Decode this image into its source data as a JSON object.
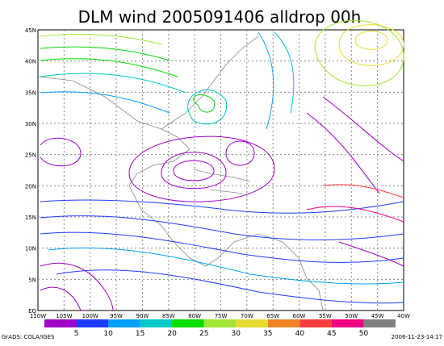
{
  "title": "DLM wind 2005091406 alldrop 00h",
  "lat_labels": [
    "45N",
    "40N",
    "35N",
    "30N",
    "25N",
    "20N",
    "15N",
    "10N",
    "5N",
    "EQ"
  ],
  "lon_labels": [
    "110W",
    "105W",
    "100W",
    "95W",
    "90W",
    "85W",
    "80W",
    "75W",
    "70W",
    "65W",
    "60W",
    "55W",
    "50W",
    "45W",
    "40W"
  ],
  "colorbar": {
    "labels": [
      5,
      10,
      15,
      20,
      25,
      30,
      35,
      40,
      45,
      50
    ],
    "colors": [
      "#a000c8",
      "#1e3cff",
      "#00a0ff",
      "#00c8c8",
      "#00dc00",
      "#a0e632",
      "#e6dc32",
      "#f08228",
      "#fa3c3c",
      "#f00082",
      "#808080"
    ]
  },
  "footer_left": "GrADS: COLA/IGES",
  "footer_right": "2006-11-23-14:17"
}
